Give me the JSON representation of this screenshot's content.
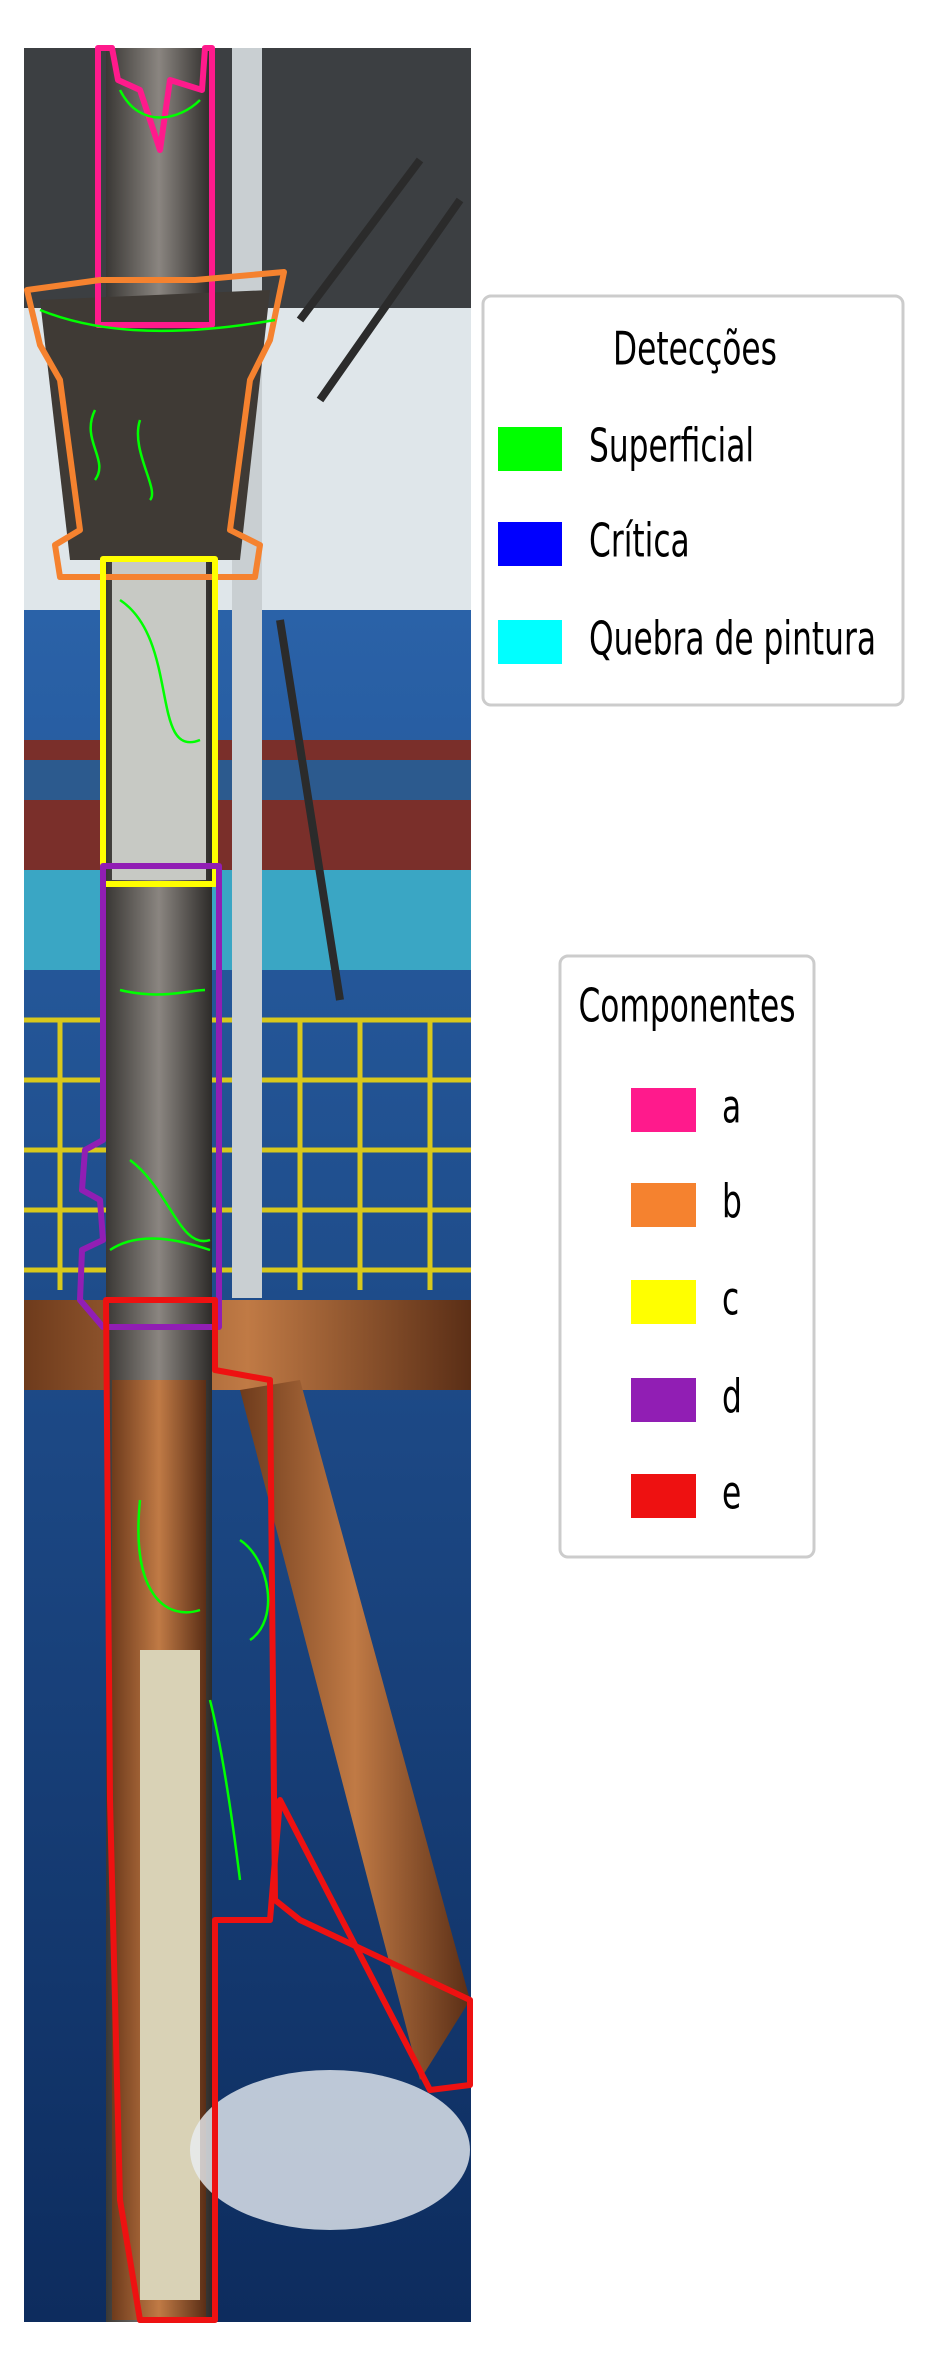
{
  "legends": [
    {
      "title": "Detecções",
      "items": [
        {
          "label": "Superficial",
          "color": "#00ff00"
        },
        {
          "label": "Crítica",
          "color": "#0000ff"
        },
        {
          "label": "Quebra de pintura",
          "color": "#00ffff"
        }
      ]
    },
    {
      "title": "Componentes",
      "items": [
        {
          "label": "a",
          "color": "#ff1a8c"
        },
        {
          "label": "b",
          "color": "#f5822f"
        },
        {
          "label": "c",
          "color": "#ffff00"
        },
        {
          "label": "d",
          "color": "#911eb4"
        },
        {
          "label": "e",
          "color": "#ee1111"
        }
      ]
    }
  ]
}
